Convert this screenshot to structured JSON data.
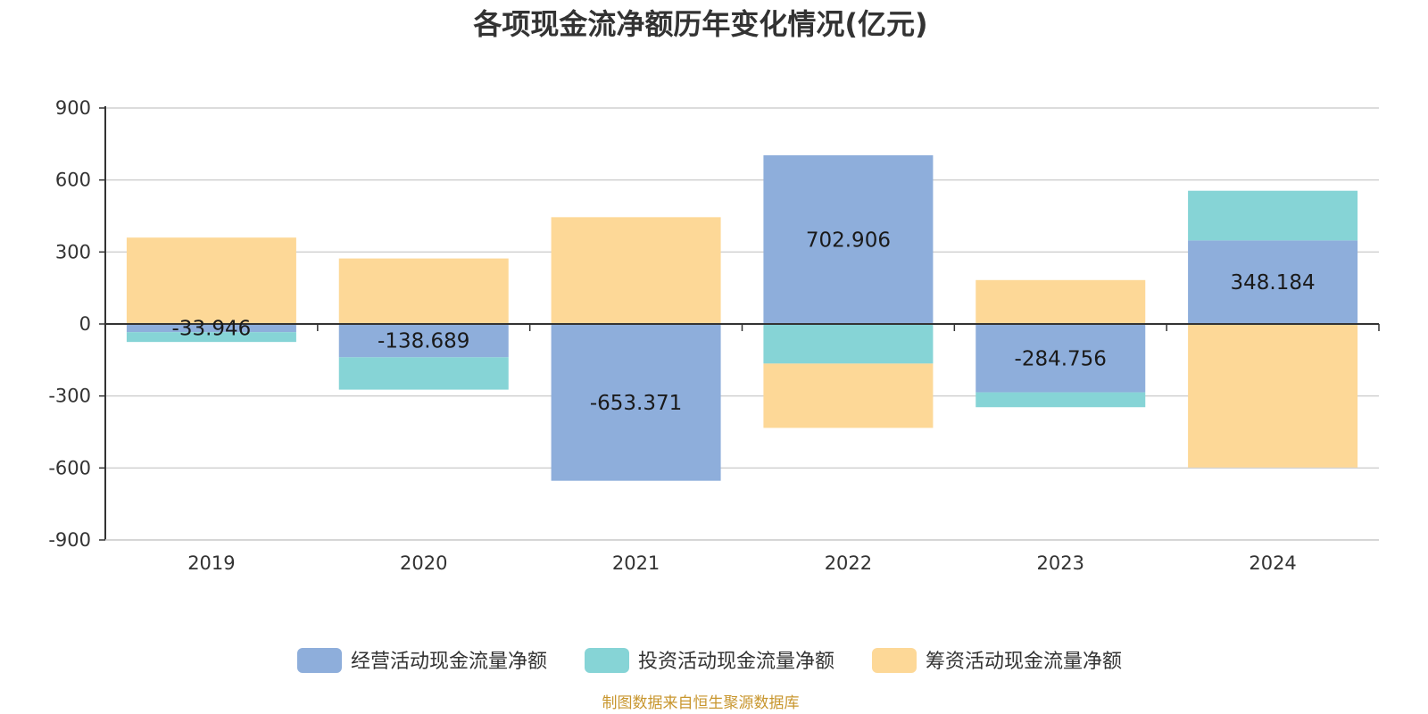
{
  "chart_data": {
    "type": "bar",
    "stacked": true,
    "title": "各项现金流净额历年变化情况(亿元)",
    "categories": [
      "2019",
      "2020",
      "2021",
      "2022",
      "2023",
      "2024"
    ],
    "ylim": [
      -900,
      900
    ],
    "yticks": [
      900,
      600,
      300,
      0,
      -300,
      -600,
      -900
    ],
    "grid": true,
    "legend_position": "bottom",
    "series": [
      {
        "name": "经营活动现金流量净额",
        "color": "#8eaedb",
        "values": [
          -33.946,
          -138.689,
          -653.371,
          702.906,
          -284.756,
          348.184
        ],
        "labels": [
          "-33.946",
          "-138.689",
          "-653.371",
          "702.906",
          "-284.756",
          "348.184"
        ]
      },
      {
        "name": "投资活动现金流量净额",
        "color": "#86d4d6",
        "values": [
          -41,
          -135,
          0,
          -165,
          -62,
          207
        ]
      },
      {
        "name": "筹资活动现金流量净额",
        "color": "#fdd897",
        "values": [
          360,
          273,
          445,
          -268,
          183,
          -598
        ]
      }
    ],
    "source": "制图数据来自恒生聚源数据库"
  }
}
